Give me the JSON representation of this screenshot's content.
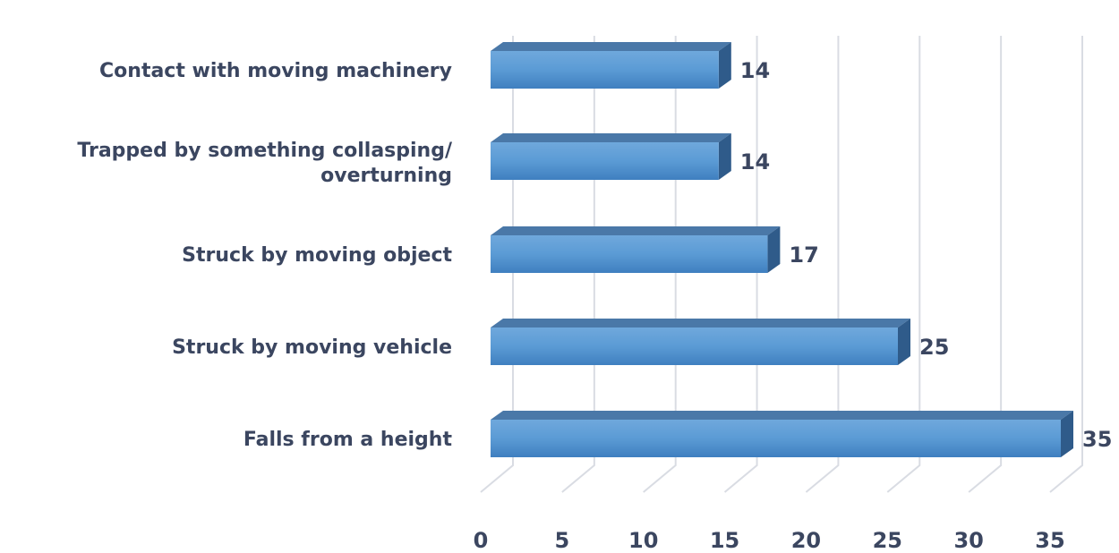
{
  "chart_data": {
    "type": "bar",
    "orientation": "horizontal",
    "style": "3d",
    "title": "",
    "xlabel": "",
    "ylabel": "",
    "categories": [
      [
        "Contact with moving machinery"
      ],
      [
        "Trapped by something collasping/",
        "overturning"
      ],
      [
        "Struck by moving object"
      ],
      [
        "Struck by moving vehicle"
      ],
      [
        "Falls from a height"
      ]
    ],
    "values": [
      14,
      14,
      17,
      25,
      35
    ],
    "data_labels": [
      "14",
      "14",
      "17",
      "25",
      "35"
    ],
    "xlim": [
      0,
      35
    ],
    "xticks": [
      "0",
      "5",
      "10",
      "15",
      "20",
      "25",
      "30",
      "35"
    ],
    "grid": true,
    "legend": "none",
    "colors": {
      "bar": "#5b9bd5",
      "bar_top": "#4a78a8",
      "bar_side": "#2f5b8a",
      "grid": "#d9dce3",
      "text": "#3b4660"
    }
  }
}
